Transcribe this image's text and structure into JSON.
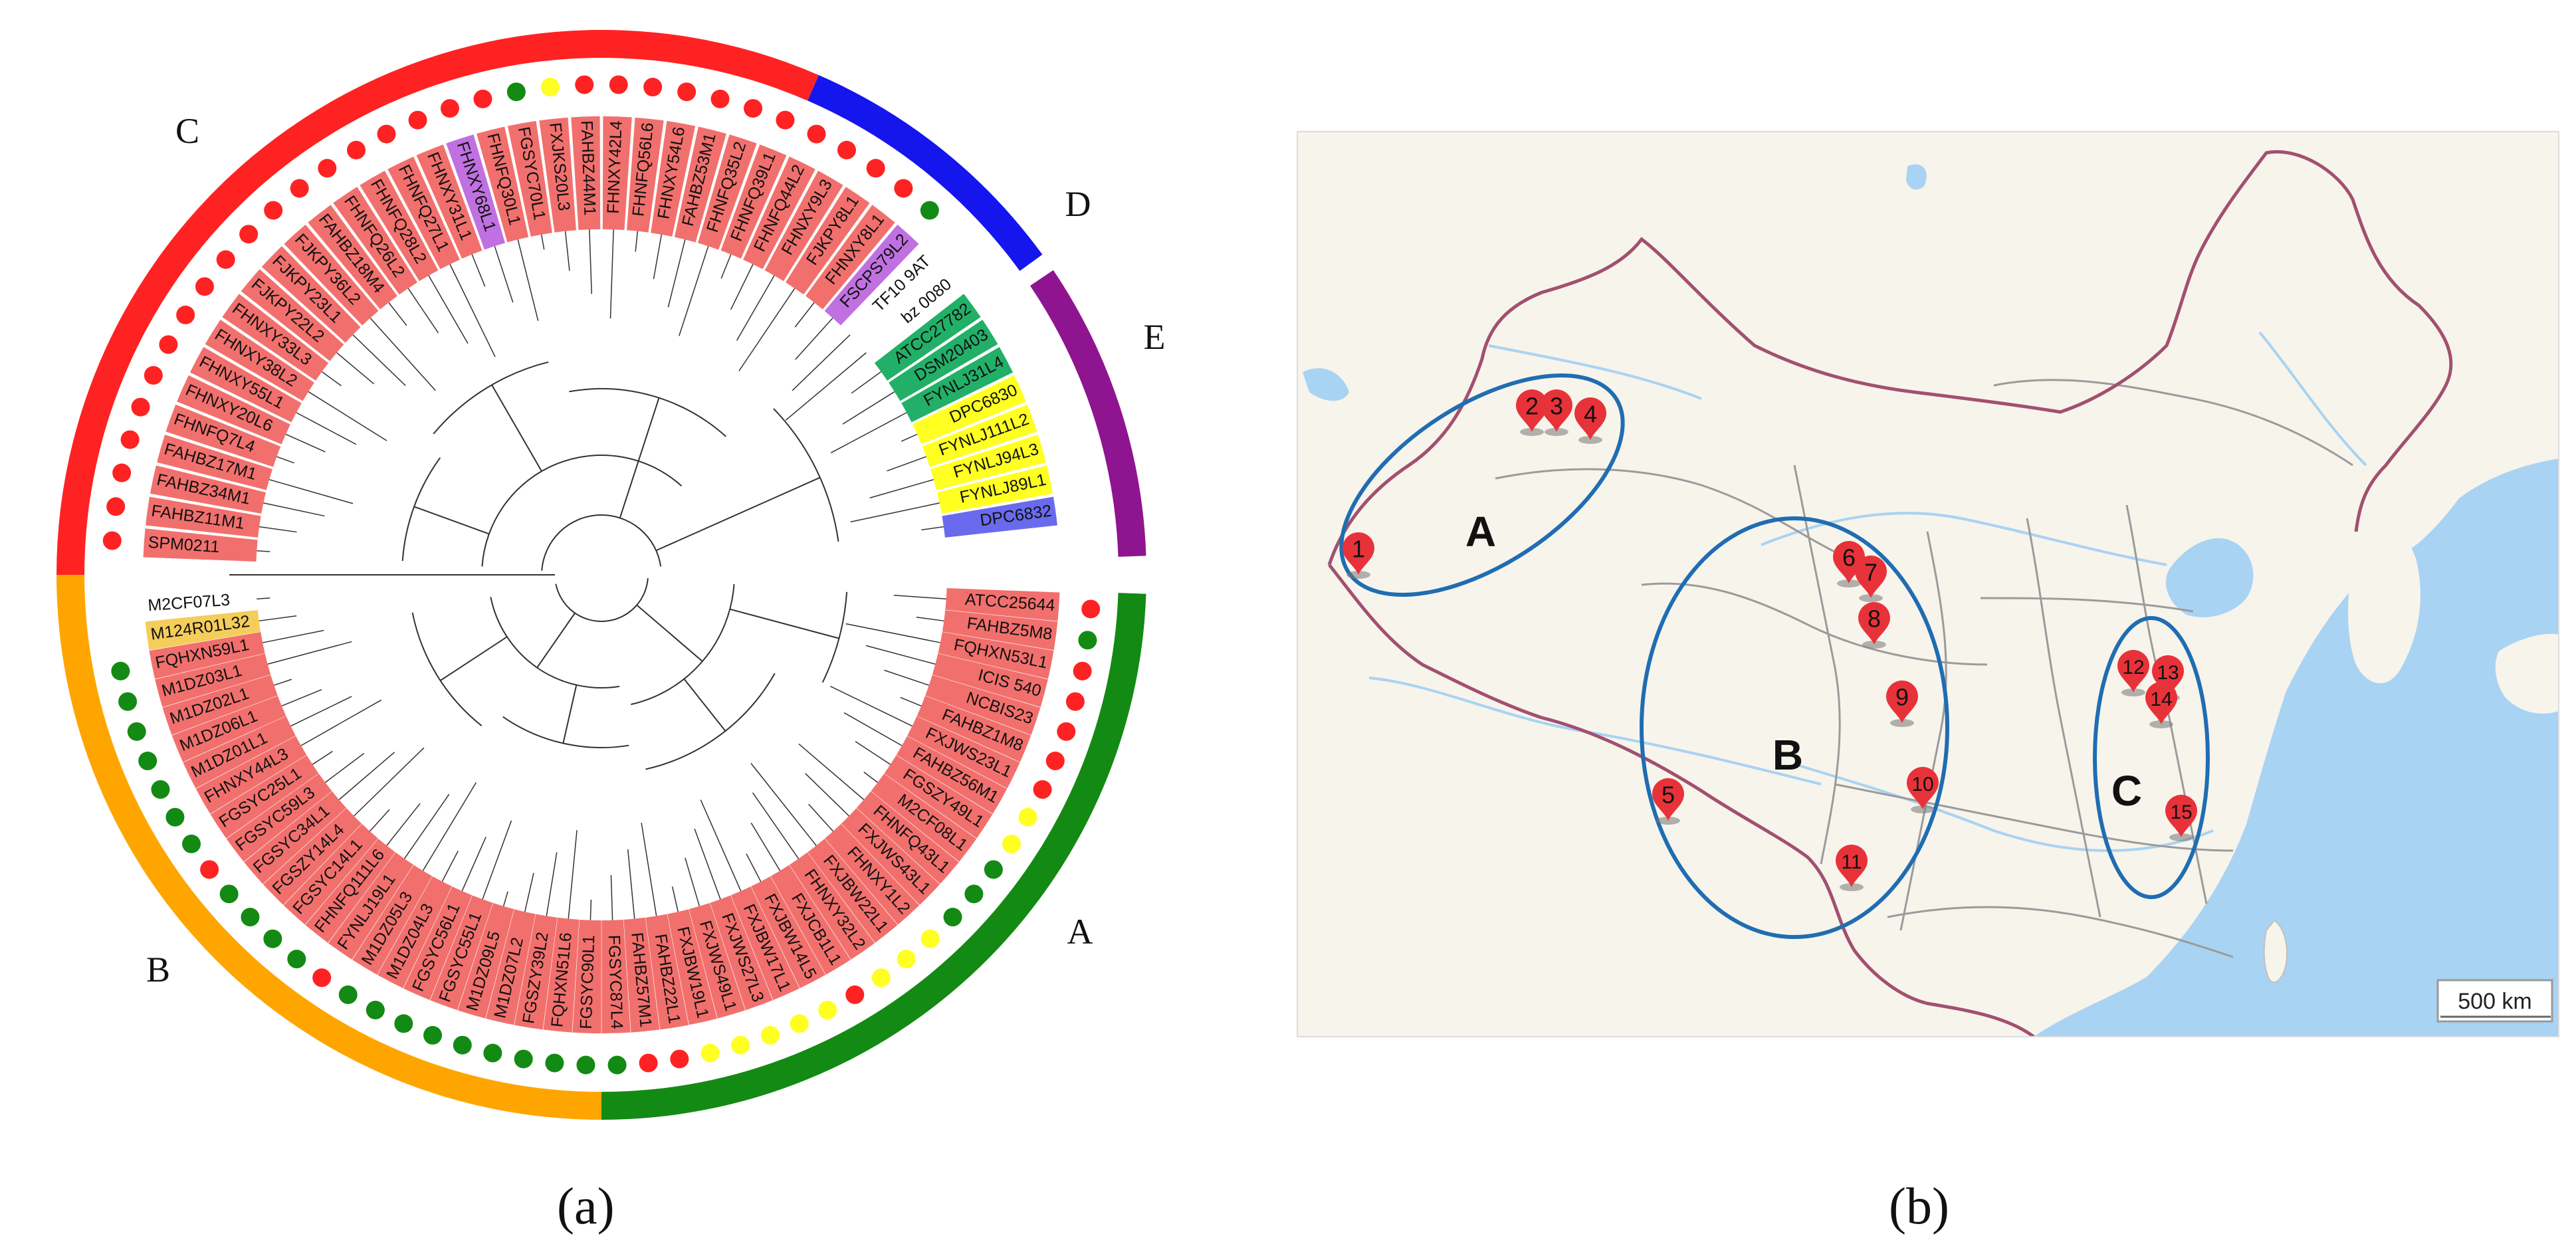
{
  "panel_a": {
    "caption": "(a)",
    "clade_labels": {
      "A": "A",
      "B": "B",
      "C": "C",
      "D": "D",
      "E": "E"
    },
    "colors": {
      "red": "#ff2222",
      "orange": "#ffa500",
      "green": "#138a13",
      "blue": "#1515ee",
      "purple": "#8f1490",
      "yellow": "#ffff22",
      "salmon": "#f1706d",
      "lilac": "#c070e0",
      "teal": "#22b068",
      "indigo": "#6a6aee",
      "gold": "#f5cd5a"
    },
    "upper_taxa": [
      {
        "name": "SPM0211",
        "bg": "salmon",
        "dot": "red"
      },
      {
        "name": "FAHBZ11M1",
        "bg": "salmon",
        "dot": "red"
      },
      {
        "name": "FAHBZ34M1",
        "bg": "salmon",
        "dot": "red"
      },
      {
        "name": "FAHBZ17M1",
        "bg": "salmon",
        "dot": "red"
      },
      {
        "name": "FHNFQ7L4",
        "bg": "salmon",
        "dot": "red"
      },
      {
        "name": "FHNXY20L6",
        "bg": "salmon",
        "dot": "red"
      },
      {
        "name": "FHNXY55L1",
        "bg": "salmon",
        "dot": "red"
      },
      {
        "name": "FHNXY38L2",
        "bg": "salmon",
        "dot": "red"
      },
      {
        "name": "FHNXY33L3",
        "bg": "salmon",
        "dot": "red"
      },
      {
        "name": "FJKPY22L2",
        "bg": "salmon",
        "dot": "red"
      },
      {
        "name": "FJKPY23L1",
        "bg": "salmon",
        "dot": "red"
      },
      {
        "name": "FJKPY36L2",
        "bg": "salmon",
        "dot": "red"
      },
      {
        "name": "FAHBZ18M4",
        "bg": "salmon",
        "dot": "red"
      },
      {
        "name": "FHNFQ26L2",
        "bg": "salmon",
        "dot": "red"
      },
      {
        "name": "FHNFQ28L2",
        "bg": "salmon",
        "dot": "red"
      },
      {
        "name": "FHNFQ27L1",
        "bg": "salmon",
        "dot": "red"
      },
      {
        "name": "FHNXY31L1",
        "bg": "salmon",
        "dot": "red"
      },
      {
        "name": "FHNXY68L1",
        "bg": "lilac",
        "dot": "red"
      },
      {
        "name": "FHNFQ30L1",
        "bg": "salmon",
        "dot": "red"
      },
      {
        "name": "FGSYC70L1",
        "bg": "salmon",
        "dot": "green"
      },
      {
        "name": "FXJKS20L3",
        "bg": "salmon",
        "dot": "yellow"
      },
      {
        "name": "FAHBZ44M1",
        "bg": "salmon",
        "dot": "red"
      },
      {
        "name": "FHNXY42L4",
        "bg": "salmon",
        "dot": "red"
      },
      {
        "name": "FHNFQ56L6",
        "bg": "salmon",
        "dot": "red"
      },
      {
        "name": "FHNXY54L6",
        "bg": "salmon",
        "dot": "red"
      },
      {
        "name": "FAHBZ53M1",
        "bg": "salmon",
        "dot": "red"
      },
      {
        "name": "FHNFQ35L2",
        "bg": "salmon",
        "dot": "red"
      },
      {
        "name": "FHNFQ39L1",
        "bg": "salmon",
        "dot": "red"
      },
      {
        "name": "FHNFQ44L2",
        "bg": "salmon",
        "dot": "red"
      },
      {
        "name": "FHNXY9L3",
        "bg": "salmon",
        "dot": "red"
      },
      {
        "name": "FJKPY8L1",
        "bg": "salmon",
        "dot": "red"
      },
      {
        "name": "FHNXY8L1",
        "bg": "salmon",
        "dot": "red"
      },
      {
        "name": "FSCPS79L2",
        "bg": "lilac",
        "dot": "green"
      },
      {
        "name": "TF10 9AT",
        "bg": "none",
        "dot": ""
      },
      {
        "name": "bz 0080",
        "bg": "none",
        "dot": ""
      },
      {
        "name": "ATCC27782",
        "bg": "teal",
        "dot": ""
      },
      {
        "name": "DSM20403",
        "bg": "teal",
        "dot": ""
      },
      {
        "name": "FYNLJ31L4",
        "bg": "teal",
        "dot": ""
      },
      {
        "name": "DPC6830",
        "bg": "yellow",
        "dot": ""
      },
      {
        "name": "FYNLJ111L2",
        "bg": "yellow",
        "dot": ""
      },
      {
        "name": "FYNLJ94L3",
        "bg": "yellow",
        "dot": ""
      },
      {
        "name": "FYNLJ89L1",
        "bg": "yellow",
        "dot": ""
      },
      {
        "name": "DPC6832",
        "bg": "indigo",
        "dot": ""
      }
    ],
    "lower_taxa": [
      {
        "name": "M2CF07L3",
        "bg": "none",
        "dot": ""
      },
      {
        "name": "M124R01L32",
        "bg": "gold",
        "dot": ""
      },
      {
        "name": "FQHXN59L1",
        "bg": "salmon",
        "dot": "green"
      },
      {
        "name": "M1DZ03L1",
        "bg": "salmon",
        "dot": "green"
      },
      {
        "name": "M1DZ02L1",
        "bg": "salmon",
        "dot": "green"
      },
      {
        "name": "M1DZ06L1",
        "bg": "salmon",
        "dot": "green"
      },
      {
        "name": "M1DZ01L1",
        "bg": "salmon",
        "dot": "green"
      },
      {
        "name": "FHNXY44L3",
        "bg": "salmon",
        "dot": "green"
      },
      {
        "name": "FGSYC25L1",
        "bg": "salmon",
        "dot": "green"
      },
      {
        "name": "FGSYC59L3",
        "bg": "salmon",
        "dot": "red"
      },
      {
        "name": "FGSYC34L1",
        "bg": "salmon",
        "dot": "green"
      },
      {
        "name": "FGSZY14L4",
        "bg": "salmon",
        "dot": "green"
      },
      {
        "name": "FGSYC14L1",
        "bg": "salmon",
        "dot": "green"
      },
      {
        "name": "FHNFQ111L6",
        "bg": "salmon",
        "dot": "green"
      },
      {
        "name": "FYNLJ19L1",
        "bg": "salmon",
        "dot": "red"
      },
      {
        "name": "M1DZ05L3",
        "bg": "salmon",
        "dot": "green"
      },
      {
        "name": "M1DZ04L3",
        "bg": "salmon",
        "dot": "green"
      },
      {
        "name": "FGSYC56L1",
        "bg": "salmon",
        "dot": "green"
      },
      {
        "name": "FGSYC55L1",
        "bg": "salmon",
        "dot": "green"
      },
      {
        "name": "M1DZ09L5",
        "bg": "salmon",
        "dot": "green"
      },
      {
        "name": "M1DZ07L2",
        "bg": "salmon",
        "dot": "green"
      },
      {
        "name": "FGSZY39L2",
        "bg": "salmon",
        "dot": "green"
      },
      {
        "name": "FQHXN51L6",
        "bg": "salmon",
        "dot": "green"
      },
      {
        "name": "FGSYC90L1",
        "bg": "salmon",
        "dot": "green"
      },
      {
        "name": "FGSYC87L4",
        "bg": "salmon",
        "dot": "green"
      },
      {
        "name": "FAHBZ57M1",
        "bg": "salmon",
        "dot": "red"
      },
      {
        "name": "FAHBZ22L1",
        "bg": "salmon",
        "dot": "red"
      },
      {
        "name": "FXJBW19L1",
        "bg": "salmon",
        "dot": "yellow"
      },
      {
        "name": "FXJWS49L1",
        "bg": "salmon",
        "dot": "yellow"
      },
      {
        "name": "FXJWS27L3",
        "bg": "salmon",
        "dot": "yellow"
      },
      {
        "name": "FXJBW17L1",
        "bg": "salmon",
        "dot": "yellow"
      },
      {
        "name": "FXJBW14L5",
        "bg": "salmon",
        "dot": "yellow"
      },
      {
        "name": "FXJCB1L1",
        "bg": "salmon",
        "dot": "red"
      },
      {
        "name": "FHNXY32L2",
        "bg": "salmon",
        "dot": "yellow"
      },
      {
        "name": "FXJBW22L1",
        "bg": "salmon",
        "dot": "yellow"
      },
      {
        "name": "FHNXY1L2",
        "bg": "salmon",
        "dot": "yellow"
      },
      {
        "name": "FXJWS43L1",
        "bg": "salmon",
        "dot": "green"
      },
      {
        "name": "FHNFQ43L1",
        "bg": "salmon",
        "dot": "green"
      },
      {
        "name": "M2CF08L1",
        "bg": "salmon",
        "dot": "green"
      },
      {
        "name": "FGSZY49L1",
        "bg": "salmon",
        "dot": "yellow"
      },
      {
        "name": "FAHBZ56M1",
        "bg": "salmon",
        "dot": "yellow"
      },
      {
        "name": "FXJWS23L1",
        "bg": "salmon",
        "dot": "red"
      },
      {
        "name": "FAHBZ1M8",
        "bg": "salmon",
        "dot": "red"
      },
      {
        "name": "NCBIS23",
        "bg": "salmon",
        "dot": "red"
      },
      {
        "name": "ICIS 540",
        "bg": "salmon",
        "dot": "red"
      },
      {
        "name": "FQHXN53L1",
        "bg": "salmon",
        "dot": "red"
      },
      {
        "name": "FAHBZ5M8",
        "bg": "salmon",
        "dot": "green"
      },
      {
        "name": "ATCC25644",
        "bg": "salmon",
        "dot": "red"
      }
    ],
    "outer_arcs": [
      {
        "label": "C",
        "color": "red",
        "start_deg": 0,
        "end_deg": 0
      },
      {
        "label": "D",
        "color": "blue",
        "start_deg": 0,
        "end_deg": 0
      },
      {
        "label": "E",
        "color": "purple",
        "start_deg": 0,
        "end_deg": 0
      },
      {
        "label": "B",
        "color": "orange",
        "start_deg": 0,
        "end_deg": 0
      },
      {
        "label": "A",
        "color": "green",
        "start_deg": 0,
        "end_deg": 0
      }
    ]
  },
  "panel_b": {
    "caption": "(b)",
    "scale_label": "500 km",
    "region_labels": [
      "A",
      "B",
      "C"
    ],
    "site_numbers": [
      "1",
      "2",
      "3",
      "4",
      "5",
      "6",
      "7",
      "8",
      "9",
      "10",
      "11",
      "12",
      "13",
      "14",
      "15"
    ],
    "colors": {
      "land": "#f7f4ec",
      "water": "#a9d3f2",
      "border": "#a2506f",
      "ellipse": "#1f6db2",
      "marker": "#e8323a"
    }
  }
}
